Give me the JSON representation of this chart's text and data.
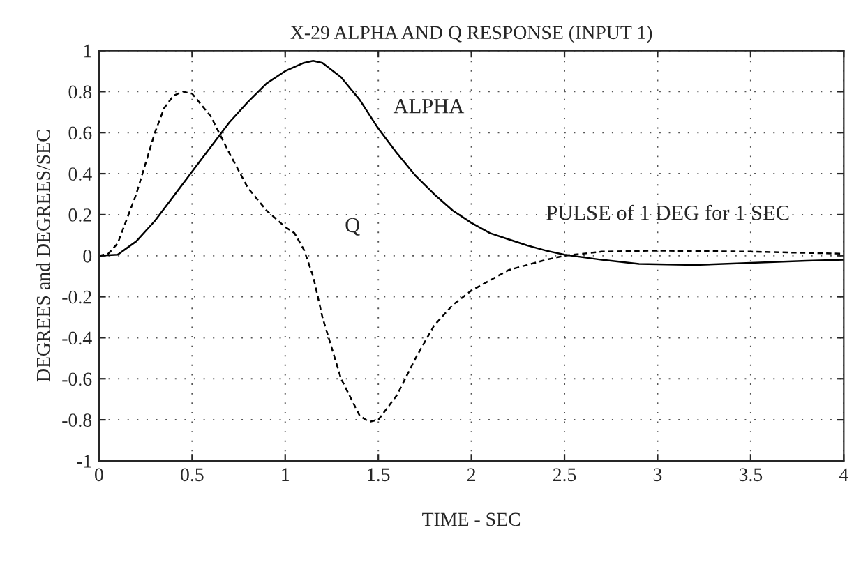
{
  "chart_data": {
    "type": "line",
    "title": "X-29 ALPHA AND Q RESPONSE (INPUT 1)",
    "xlabel": "TIME - SEC",
    "ylabel": "DEGREES and DEGREES/SEC",
    "series": [
      {
        "color": "#000000",
        "line_style": "solid",
        "x": [
          0,
          0.1,
          0.2,
          0.3,
          0.4,
          0.5,
          0.6,
          0.7,
          0.8,
          0.9,
          1.0,
          1.1,
          1.15,
          1.2,
          1.3,
          1.4,
          1.5,
          1.6,
          1.7,
          1.8,
          1.9,
          2.0,
          2.1,
          2.2,
          2.3,
          2.4,
          2.5,
          2.7,
          2.9,
          3.2,
          3.5,
          3.8,
          4.0
        ],
        "values": [
          0,
          0.005,
          0.07,
          0.17,
          0.29,
          0.41,
          0.53,
          0.65,
          0.75,
          0.84,
          0.9,
          0.94,
          0.95,
          0.94,
          0.87,
          0.76,
          0.62,
          0.5,
          0.39,
          0.3,
          0.22,
          0.16,
          0.11,
          0.08,
          0.05,
          0.025,
          0.005,
          -0.02,
          -0.04,
          -0.045,
          -0.035,
          -0.025,
          -0.02
        ]
      },
      {
        "color": "#000000",
        "line_style": "dashed",
        "x": [
          0,
          0.05,
          0.1,
          0.2,
          0.3,
          0.35,
          0.4,
          0.45,
          0.5,
          0.6,
          0.7,
          0.8,
          0.9,
          1.0,
          1.05,
          1.1,
          1.15,
          1.2,
          1.3,
          1.4,
          1.45,
          1.5,
          1.6,
          1.7,
          1.8,
          1.9,
          2.0,
          2.1,
          2.2,
          2.4,
          2.5,
          2.7,
          3.0,
          3.5,
          4.0
        ],
        "values": [
          0,
          0.01,
          0.06,
          0.3,
          0.6,
          0.72,
          0.78,
          0.8,
          0.79,
          0.68,
          0.5,
          0.33,
          0.22,
          0.14,
          0.11,
          0.03,
          -0.1,
          -0.3,
          -0.6,
          -0.78,
          -0.81,
          -0.8,
          -0.68,
          -0.5,
          -0.34,
          -0.24,
          -0.17,
          -0.12,
          -0.07,
          -0.02,
          0.0,
          0.02,
          0.025,
          0.02,
          0.01
        ]
      }
    ],
    "annotations": [
      "ALPHA",
      "Q",
      "PULSE of 1 DEG for 1 SEC"
    ],
    "xlim": [
      0,
      4
    ],
    "ylim": [
      -1,
      1
    ],
    "xticks": [
      0,
      0.5,
      1,
      1.5,
      2,
      2.5,
      3,
      3.5,
      4
    ],
    "yticks": [
      -1,
      -0.8,
      -0.6,
      -0.4,
      -0.2,
      0,
      0.2,
      0.4,
      0.6,
      0.8,
      1
    ],
    "grid": true
  }
}
